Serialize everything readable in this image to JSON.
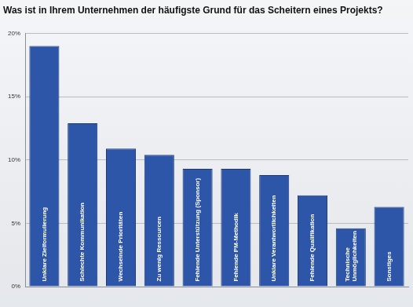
{
  "chart_data": {
    "type": "bar",
    "title": "Was ist in Ihrem Unternehmen der häufigste Grund für das Scheitern eines Projekts?",
    "categories": [
      "Unklare Zielformulierung",
      "Schlechte Kommunikation",
      "Wechselnde Prioritäten",
      "Zu wenig Ressourcen",
      "Fehlende Unterstützung (Sponsor)",
      "Fehlende PM-Methodik",
      "Unklare Verantwortlichkeiten",
      "Fehlende Qualifikation",
      "Technische Unmöglichkeiten",
      "Sonstiges"
    ],
    "values": [
      19.0,
      12.9,
      10.9,
      10.4,
      9.3,
      9.3,
      8.8,
      7.2,
      4.6,
      6.3
    ],
    "color": "#2d55a8",
    "ylim": [
      0,
      20
    ],
    "yticks": [
      {
        "value": 0,
        "label": "0%"
      },
      {
        "value": 5,
        "label": "5%"
      },
      {
        "value": 10,
        "label": "10%"
      },
      {
        "value": 15,
        "label": "15%"
      },
      {
        "value": 20,
        "label": "20%"
      }
    ],
    "grid": true
  }
}
